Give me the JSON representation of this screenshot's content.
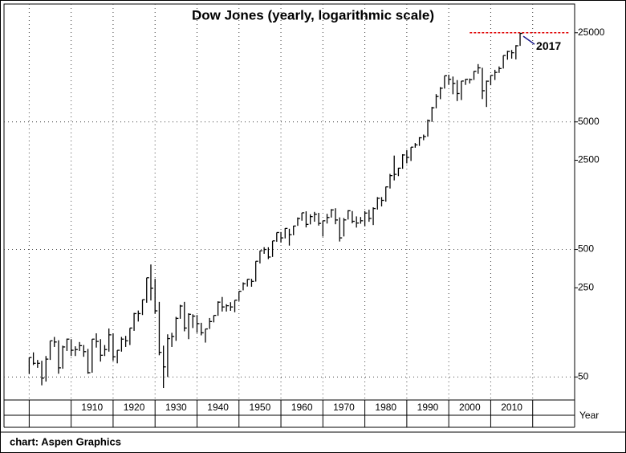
{
  "chart_data": {
    "type": "hlc",
    "title": "Dow Jones (yearly, logarithmic scale)",
    "x_label": "Year",
    "source": "chart: Aspen Graphics",
    "annotation": "2017",
    "log_scale": true,
    "color": "#000000",
    "reference_line": 25000,
    "reference_color": "#e00000",
    "annotation_color": "#1a1a8c",
    "xlim": [
      1894,
      2030
    ],
    "xticks": [
      1910,
      1920,
      1930,
      1940,
      1950,
      1960,
      1970,
      1980,
      1990,
      2000,
      2010
    ],
    "ylim": [
      33,
      42000
    ],
    "yticks": [
      50,
      250,
      500,
      2500,
      5000,
      25000
    ],
    "ygrid": [
      50,
      500,
      5000
    ],
    "x": [
      1900,
      1901,
      1902,
      1903,
      1904,
      1905,
      1906,
      1907,
      1908,
      1909,
      1910,
      1911,
      1912,
      1913,
      1914,
      1915,
      1916,
      1917,
      1918,
      1919,
      1920,
      1921,
      1922,
      1923,
      1924,
      1925,
      1926,
      1927,
      1928,
      1929,
      1930,
      1931,
      1932,
      1933,
      1934,
      1935,
      1936,
      1937,
      1938,
      1939,
      1940,
      1941,
      1942,
      1943,
      1944,
      1945,
      1946,
      1947,
      1948,
      1949,
      1950,
      1951,
      1952,
      1953,
      1954,
      1955,
      1956,
      1957,
      1958,
      1959,
      1960,
      1961,
      1962,
      1963,
      1964,
      1965,
      1966,
      1967,
      1968,
      1969,
      1970,
      1971,
      1972,
      1973,
      1974,
      1975,
      1976,
      1977,
      1978,
      1979,
      1980,
      1981,
      1982,
      1983,
      1984,
      1985,
      1986,
      1987,
      1988,
      1989,
      1990,
      1991,
      1992,
      1993,
      1994,
      1995,
      1996,
      1997,
      1998,
      1999,
      2000,
      2001,
      2002,
      2003,
      2004,
      2005,
      2006,
      2007,
      2008,
      2009,
      2010,
      2011,
      2012,
      2013,
      2014,
      2015,
      2016,
      2017
    ],
    "high": [
      71,
      78,
      68,
      67,
      73,
      96,
      103,
      97,
      88,
      100,
      99,
      87,
      94,
      89,
      83,
      99,
      110,
      99,
      89,
      120,
      110,
      81,
      103,
      105,
      121,
      159,
      166,
      202,
      300,
      381,
      294,
      194,
      88,
      108,
      111,
      148,
      184,
      194,
      158,
      155,
      153,
      133,
      119,
      145,
      152,
      196,
      212,
      186,
      193,
      200,
      235,
      276,
      292,
      294,
      404,
      488,
      521,
      520,
      583,
      679,
      685,
      734,
      726,
      767,
      891,
      969,
      995,
      943,
      985,
      968,
      842,
      951,
      1036,
      1052,
      892,
      882,
      1015,
      1000,
      908,
      898,
      1000,
      1024,
      1070,
      1287,
      1287,
      1553,
      1956,
      2722,
      2184,
      2791,
      2999,
      3168,
      3413,
      3794,
      3978,
      5216,
      6560,
      8259,
      9374,
      11497,
      11723,
      11338,
      10635,
      10454,
      10855,
      10940,
      12510,
      14198,
      13279,
      10548,
      11585,
      12810,
      13610,
      16577,
      18054,
      18312,
      19975,
      24876
    ],
    "low": [
      53,
      62,
      59,
      43,
      46,
      68,
      86,
      53,
      58,
      80,
      73,
      73,
      80,
      72,
      53,
      54,
      85,
      66,
      73,
      79,
      67,
      64,
      79,
      86,
      89,
      115,
      136,
      153,
      191,
      199,
      157,
      74,
      41,
      50,
      86,
      96,
      143,
      114,
      99,
      121,
      111,
      106,
      93,
      119,
      134,
      151,
      163,
      163,
      165,
      161,
      197,
      239,
      256,
      255,
      280,
      388,
      462,
      420,
      437,
      574,
      566,
      610,
      536,
      646,
      766,
      840,
      744,
      786,
      825,
      769,
      631,
      798,
      889,
      788,
      577,
      632,
      858,
      801,
      742,
      796,
      759,
      824,
      777,
      1027,
      1087,
      1185,
      1502,
      1739,
      1879,
      2144,
      2365,
      2470,
      3137,
      3242,
      3593,
      3832,
      5000,
      6391,
      7539,
      9121,
      9796,
      8236,
      7286,
      7417,
      9750,
      10012,
      10668,
      11939,
      7552,
      6547,
      9686,
      10655,
      12101,
      13104,
      15373,
      15666,
      15451,
      19732
    ],
    "close": [
      71,
      64,
      64,
      49,
      69,
      96,
      94,
      59,
      86,
      99,
      81,
      82,
      88,
      79,
      54,
      99,
      95,
      74,
      82,
      107,
      72,
      81,
      99,
      96,
      121,
      157,
      157,
      202,
      300,
      248,
      165,
      78,
      60,
      100,
      104,
      144,
      180,
      121,
      155,
      150,
      131,
      111,
      119,
      136,
      152,
      193,
      177,
      181,
      177,
      200,
      235,
      269,
      292,
      281,
      404,
      488,
      500,
      436,
      584,
      679,
      616,
      731,
      652,
      763,
      874,
      969,
      786,
      905,
      944,
      800,
      839,
      890,
      1020,
      851,
      616,
      852,
      1005,
      831,
      805,
      839,
      964,
      875,
      1047,
      1259,
      1212,
      1547,
      1896,
      1939,
      2169,
      2753,
      2634,
      3169,
      3301,
      3754,
      3834,
      5117,
      6448,
      7908,
      9181,
      11497,
      10787,
      10022,
      8342,
      10454,
      10783,
      10718,
      12463,
      13265,
      8776,
      10428,
      11578,
      12218,
      13104,
      16577,
      17823,
      17425,
      19763,
      24719
    ]
  }
}
